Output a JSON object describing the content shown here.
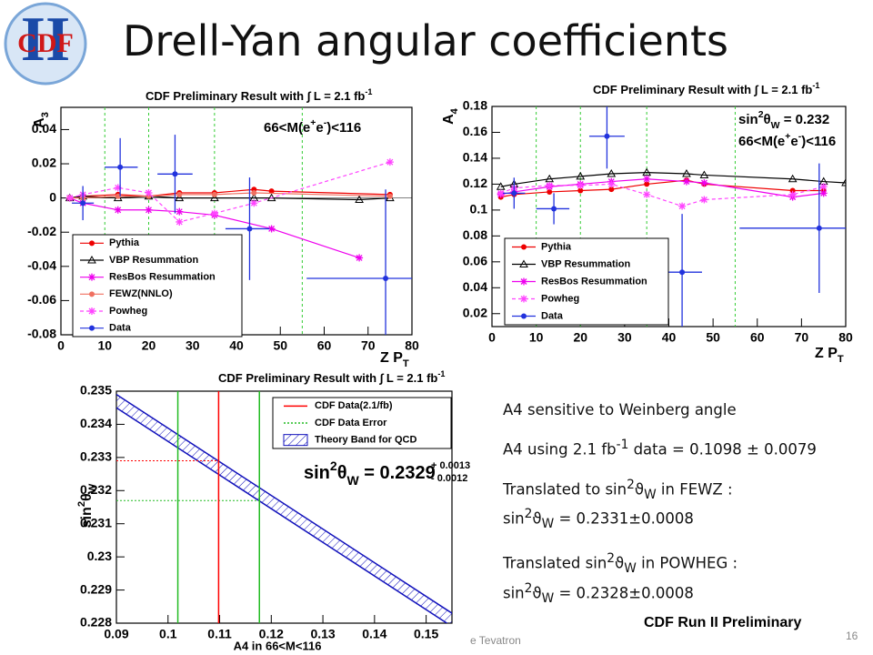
{
  "slide": {
    "title": "Drell-Yan angular coefficients",
    "logo": {
      "text": "CDF",
      "numeral": "II"
    },
    "bullets": [
      [
        [
          "A4 sensitive to Weinberg angle"
        ]
      ],
      [
        [
          "A4 using 2.1 fb",
          {
            "sup": "-1"
          },
          " data = 0.1098 ± 0.0079"
        ]
      ],
      [
        [
          "Translated to sin",
          {
            "sup": "2"
          },
          "ϑ",
          {
            "sub": "W"
          },
          " in FEWZ :"
        ],
        [
          "sin",
          {
            "sup": "2"
          },
          "ϑ",
          {
            "sub": "W"
          },
          " = 0.2331±0.0008"
        ]
      ],
      [
        [
          "Translated sin",
          {
            "sup": "2"
          },
          "ϑ",
          {
            "sub": "W"
          },
          " in POWHEG :"
        ],
        [
          "sin",
          {
            "sup": "2"
          },
          "ϑ",
          {
            "sub": "W"
          },
          " = 0.2328±0.0008"
        ]
      ]
    ],
    "note": "CDF Run II Preliminary",
    "footer": "e Tevatron",
    "page": "16"
  },
  "chart_data": [
    {
      "type": "line",
      "title": [
        "CDF Preliminary Result with ∫ L = 2.1 fb",
        {
          "sup": "-1"
        }
      ],
      "ylabel": [
        "A",
        {
          "sub": "3"
        }
      ],
      "xlabel": [
        "Z P",
        {
          "sub": "T"
        }
      ],
      "annotations": [
        [
          "66<M(e",
          {
            "sup": "+"
          },
          "e",
          {
            "sup": "-"
          },
          ")<116"
        ]
      ],
      "xlim": [
        0,
        80
      ],
      "xticks": [
        0,
        10,
        20,
        30,
        40,
        50,
        60,
        70,
        80
      ],
      "ylim": [
        -0.08,
        0.053
      ],
      "yticks": [
        -0.08,
        -0.06,
        -0.04,
        -0.02,
        0,
        0.02,
        0.04
      ],
      "vlines": [
        10,
        20,
        35,
        55
      ],
      "series": [
        {
          "name": "Pythia",
          "color": "#ee0000",
          "marker": "circle",
          "x": [
            2,
            5,
            13,
            20,
            27,
            35,
            44,
            48,
            75
          ],
          "values": [
            0,
            0.001,
            0.002,
            0.001,
            0.003,
            0.003,
            0.005,
            0.004,
            0.002
          ]
        },
        {
          "name": "VBP Resummation",
          "color": "#000000",
          "marker": "triangle",
          "x": [
            2,
            5,
            13,
            20,
            27,
            35,
            44,
            48,
            68,
            75
          ],
          "values": [
            0,
            0.001,
            0,
            0.001,
            0,
            0,
            0,
            0,
            -0.001,
            0
          ]
        },
        {
          "name": "ResBos Resummation",
          "color": "#ee00ee",
          "marker": "star",
          "x": [
            2,
            5,
            13,
            20,
            27,
            35,
            48,
            68
          ],
          "values": [
            0,
            -0.003,
            -0.007,
            -0.007,
            -0.008,
            -0.01,
            -0.018,
            -0.035
          ]
        },
        {
          "name": "FEWZ(NNLO)",
          "color": "#f07060",
          "marker": "circle",
          "x": [
            2,
            5,
            13,
            20,
            27,
            35,
            44,
            75
          ],
          "values": [
            0,
            0,
            0.001,
            0.001,
            0.002,
            0.002,
            0.003,
            0.001
          ]
        },
        {
          "name": "Powheg",
          "color": "#ff44ff",
          "marker": "star",
          "dashed": true,
          "x": [
            2,
            5,
            13,
            20,
            27,
            35,
            44,
            75
          ],
          "values": [
            0,
            0.002,
            0.006,
            0.003,
            -0.014,
            -0.009,
            -0.003,
            0.021
          ]
        },
        {
          "name": "Data",
          "color": "#2233dd",
          "marker": "circle",
          "x": [
            5,
            13.5,
            26,
            43,
            74
          ],
          "x_low": [
            2.5,
            10,
            22,
            37.5,
            56
          ],
          "x_high": [
            7.5,
            17.5,
            30,
            47.5,
            80
          ],
          "values": [
            -0.003,
            0.018,
            0.014,
            -0.018,
            -0.047
          ],
          "errors": [
            0.01,
            0.017,
            0.023,
            0.03,
            0.052
          ]
        }
      ]
    },
    {
      "type": "line",
      "title": [
        "CDF Preliminary Result with ∫ L = 2.1 fb",
        {
          "sup": "-1"
        }
      ],
      "ylabel": [
        "A",
        {
          "sub": "4"
        }
      ],
      "xlabel": [
        "Z P",
        {
          "sub": "T"
        }
      ],
      "annotations": [
        [
          "sin",
          {
            "sup": "2"
          },
          "θ",
          {
            "sub": "W"
          },
          " = 0.232"
        ],
        [
          "66<M(e",
          {
            "sup": "+"
          },
          "e",
          {
            "sup": "-"
          },
          ")<116"
        ]
      ],
      "xlim": [
        0,
        80
      ],
      "xticks": [
        0,
        10,
        20,
        30,
        40,
        50,
        60,
        70,
        80
      ],
      "ylim": [
        0.01,
        0.18
      ],
      "yticks": [
        0.02,
        0.04,
        0.06,
        0.08,
        0.1,
        0.12,
        0.14,
        0.16,
        0.18
      ],
      "vlines": [
        10,
        20,
        35,
        55
      ],
      "series": [
        {
          "name": "Pythia",
          "color": "#ee0000",
          "marker": "circle",
          "x": [
            2,
            5,
            13,
            20,
            27,
            35,
            44,
            48,
            68,
            75
          ],
          "values": [
            0.11,
            0.112,
            0.114,
            0.115,
            0.116,
            0.12,
            0.123,
            0.12,
            0.115,
            0.115
          ]
        },
        {
          "name": "VBP Resummation",
          "color": "#000000",
          "marker": "triangle",
          "x": [
            2,
            5,
            13,
            20,
            27,
            35,
            44,
            48,
            68,
            75,
            80
          ],
          "values": [
            0.118,
            0.12,
            0.124,
            0.126,
            0.128,
            0.129,
            0.128,
            0.127,
            0.124,
            0.122,
            0.121
          ]
        },
        {
          "name": "ResBos Resummation",
          "color": "#ee00ee",
          "marker": "star",
          "x": [
            2,
            5,
            13,
            20,
            27,
            35,
            44,
            48,
            68,
            75
          ],
          "values": [
            0.112,
            0.114,
            0.118,
            0.12,
            0.122,
            0.124,
            0.122,
            0.121,
            0.11,
            0.113
          ]
        },
        {
          "name": "Powheg",
          "color": "#ff44ff",
          "marker": "star",
          "dashed": true,
          "x": [
            2,
            5,
            13,
            20,
            27,
            35,
            43,
            48,
            68,
            75
          ],
          "values": [
            0.113,
            0.117,
            0.119,
            0.119,
            0.12,
            0.112,
            0.103,
            0.108,
            0.112,
            0.118
          ]
        },
        {
          "name": "Data",
          "color": "#2233dd",
          "marker": "circle",
          "x": [
            5,
            14,
            26,
            43,
            74
          ],
          "x_low": [
            2.5,
            10,
            22,
            37.5,
            56
          ],
          "x_high": [
            7.5,
            17.5,
            30,
            47.5,
            80
          ],
          "values": [
            0.113,
            0.101,
            0.157,
            0.052,
            0.086
          ],
          "errors": [
            0.012,
            0.012,
            0.025,
            0.045,
            0.05
          ]
        }
      ]
    },
    {
      "type": "band",
      "title": [
        "CDF Preliminary Result with ∫ L = 2.1 fb",
        {
          "sup": "-1"
        }
      ],
      "ylabel": [
        "sin",
        {
          "sup": "2"
        },
        "θ",
        {
          "sub": "W"
        }
      ],
      "xlabel": "A4 in 66<M<116",
      "annotation": [
        "sin",
        {
          "sup": "2"
        },
        "θ",
        {
          "sub": "W"
        },
        " = 0.2329"
      ],
      "annotation_errors": [
        "+ 0.0013",
        "- 0.0012"
      ],
      "xlim": [
        0.09,
        0.155
      ],
      "xticks": [
        0.09,
        0.1,
        0.11,
        0.12,
        0.13,
        0.14,
        0.15
      ],
      "ylim": [
        0.228,
        0.235
      ],
      "yticks": [
        0.228,
        0.229,
        0.23,
        0.231,
        0.232,
        0.233,
        0.234,
        0.235
      ],
      "measurement": {
        "name": "CDF Data(2.1/fb)",
        "color": "#ff0000",
        "x": 0.1098,
        "y": 0.2329
      },
      "error": {
        "name": "CDF Data Error",
        "color": "#22bb22",
        "x": [
          0.1019,
          0.1177
        ],
        "y": 0.2317
      },
      "band": {
        "name": "Theory Band for QCD",
        "color": "#1010bb",
        "x": [
          0.09,
          0.155
        ],
        "upper": [
          0.2349,
          0.2283
        ],
        "lower": [
          0.2345,
          0.2279
        ]
      }
    }
  ]
}
